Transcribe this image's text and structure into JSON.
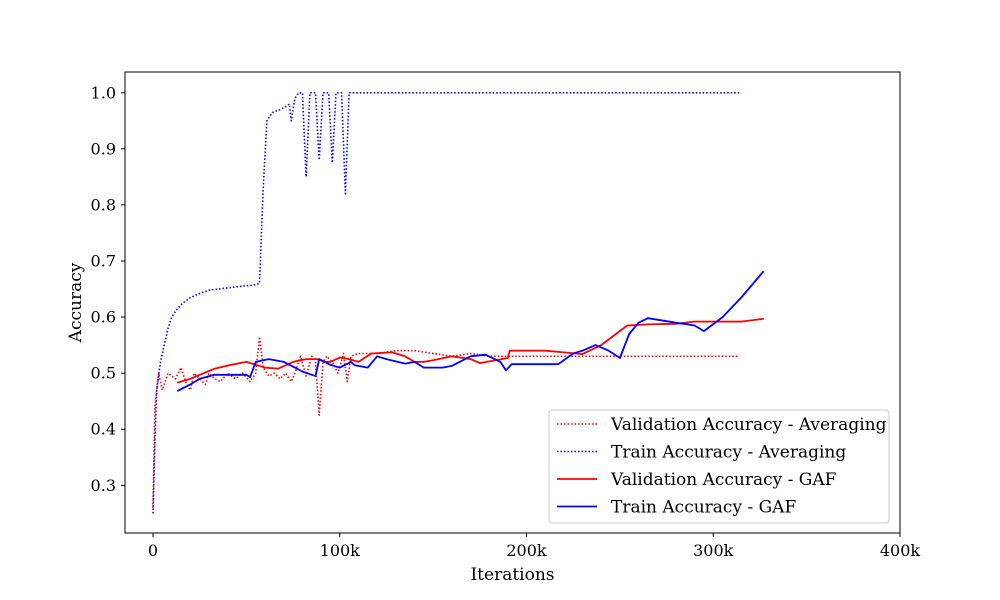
{
  "chart_data": {
    "type": "line",
    "title": "",
    "xlabel": "Iterations",
    "ylabel": "Accuracy",
    "xlim": [
      -15000,
      400000
    ],
    "ylim": [
      0.215,
      1.037
    ],
    "xticks": [
      {
        "value": 0,
        "label": "0"
      },
      {
        "value": 100000,
        "label": "100k"
      },
      {
        "value": 200000,
        "label": "200k"
      },
      {
        "value": 300000,
        "label": "300k"
      },
      {
        "value": 400000,
        "label": "400k"
      }
    ],
    "yticks": [
      {
        "value": 0.3,
        "label": "0.3"
      },
      {
        "value": 0.4,
        "label": "0.4"
      },
      {
        "value": 0.5,
        "label": "0.5"
      },
      {
        "value": 0.6,
        "label": "0.6"
      },
      {
        "value": 0.7,
        "label": "0.7"
      },
      {
        "value": 0.8,
        "label": "0.8"
      },
      {
        "value": 0.9,
        "label": "0.9"
      },
      {
        "value": 1.0,
        "label": "1.0"
      }
    ],
    "grid": false,
    "legend_position": "lower-right",
    "series": [
      {
        "name": "Validation Accuracy - Averaging",
        "color": "#ff0000",
        "style": "dotted",
        "points": [
          [
            0,
            0.26
          ],
          [
            1000,
            0.44
          ],
          [
            2000,
            0.47
          ],
          [
            3000,
            0.5
          ],
          [
            5000,
            0.47
          ],
          [
            8000,
            0.5
          ],
          [
            12000,
            0.49
          ],
          [
            15000,
            0.51
          ],
          [
            18000,
            0.48
          ],
          [
            20000,
            0.47
          ],
          [
            22000,
            0.5
          ],
          [
            25000,
            0.49
          ],
          [
            28000,
            0.48
          ],
          [
            30000,
            0.5
          ],
          [
            33000,
            0.49
          ],
          [
            36000,
            0.485
          ],
          [
            40000,
            0.5
          ],
          [
            44000,
            0.49
          ],
          [
            48000,
            0.5
          ],
          [
            52000,
            0.485
          ],
          [
            55000,
            0.5
          ],
          [
            57000,
            0.565
          ],
          [
            59000,
            0.51
          ],
          [
            62000,
            0.495
          ],
          [
            65000,
            0.5
          ],
          [
            68000,
            0.49
          ],
          [
            71000,
            0.5
          ],
          [
            74000,
            0.485
          ],
          [
            76000,
            0.5
          ],
          [
            79000,
            0.53
          ],
          [
            82000,
            0.495
          ],
          [
            85000,
            0.53
          ],
          [
            87000,
            0.52
          ],
          [
            89000,
            0.425
          ],
          [
            91000,
            0.52
          ],
          [
            93000,
            0.53
          ],
          [
            96000,
            0.52
          ],
          [
            99000,
            0.5
          ],
          [
            102000,
            0.535
          ],
          [
            104000,
            0.485
          ],
          [
            106000,
            0.53
          ],
          [
            110000,
            0.535
          ],
          [
            120000,
            0.535
          ],
          [
            130000,
            0.54
          ],
          [
            140000,
            0.54
          ],
          [
            150000,
            0.535
          ],
          [
            160000,
            0.53
          ],
          [
            170000,
            0.535
          ],
          [
            180000,
            0.53
          ],
          [
            190000,
            0.53
          ],
          [
            200000,
            0.53
          ],
          [
            210000,
            0.53
          ],
          [
            220000,
            0.53
          ],
          [
            230000,
            0.53
          ],
          [
            240000,
            0.53
          ],
          [
            250000,
            0.53
          ],
          [
            260000,
            0.53
          ],
          [
            270000,
            0.53
          ],
          [
            280000,
            0.53
          ],
          [
            290000,
            0.53
          ],
          [
            300000,
            0.53
          ],
          [
            314000,
            0.53
          ]
        ]
      },
      {
        "name": "Train Accuracy - Averaging",
        "color": "#0000ff",
        "style": "dotted",
        "points": [
          [
            0,
            0.25
          ],
          [
            1000,
            0.38
          ],
          [
            2000,
            0.47
          ],
          [
            4000,
            0.52
          ],
          [
            6000,
            0.55
          ],
          [
            8000,
            0.58
          ],
          [
            10000,
            0.6
          ],
          [
            13000,
            0.615
          ],
          [
            16000,
            0.625
          ],
          [
            20000,
            0.635
          ],
          [
            25000,
            0.642
          ],
          [
            30000,
            0.648
          ],
          [
            35000,
            0.65
          ],
          [
            40000,
            0.652
          ],
          [
            45000,
            0.654
          ],
          [
            50000,
            0.656
          ],
          [
            54000,
            0.657
          ],
          [
            57000,
            0.66
          ],
          [
            59000,
            0.83
          ],
          [
            61000,
            0.95
          ],
          [
            64000,
            0.965
          ],
          [
            68000,
            0.97
          ],
          [
            71000,
            0.975
          ],
          [
            73000,
            0.98
          ],
          [
            74000,
            0.95
          ],
          [
            76000,
            0.99
          ],
          [
            78000,
            1.0
          ],
          [
            80000,
            1.0
          ],
          [
            82000,
            0.85
          ],
          [
            84000,
            1.0
          ],
          [
            87000,
            1.0
          ],
          [
            89000,
            0.88
          ],
          [
            91000,
            1.0
          ],
          [
            94000,
            1.0
          ],
          [
            96000,
            0.875
          ],
          [
            98000,
            1.0
          ],
          [
            101000,
            1.0
          ],
          [
            103000,
            0.82
          ],
          [
            105000,
            1.0
          ],
          [
            110000,
            1.0
          ],
          [
            130000,
            1.0
          ],
          [
            150000,
            1.0
          ],
          [
            170000,
            1.0
          ],
          [
            200000,
            1.0
          ],
          [
            230000,
            1.0
          ],
          [
            260000,
            1.0
          ],
          [
            290000,
            1.0
          ],
          [
            314000,
            1.0
          ]
        ]
      },
      {
        "name": "Validation Accuracy - GAF",
        "color": "#ff0000",
        "style": "solid",
        "points": [
          [
            13000,
            0.483
          ],
          [
            20000,
            0.49
          ],
          [
            25000,
            0.497
          ],
          [
            33000,
            0.508
          ],
          [
            42000,
            0.515
          ],
          [
            50000,
            0.52
          ],
          [
            55000,
            0.515
          ],
          [
            60000,
            0.51
          ],
          [
            67000,
            0.508
          ],
          [
            75000,
            0.52
          ],
          [
            82000,
            0.525
          ],
          [
            88000,
            0.525
          ],
          [
            92000,
            0.52
          ],
          [
            95000,
            0.52
          ],
          [
            100000,
            0.528
          ],
          [
            105000,
            0.525
          ],
          [
            110000,
            0.52
          ],
          [
            117000,
            0.535
          ],
          [
            128000,
            0.537
          ],
          [
            135000,
            0.53
          ],
          [
            140000,
            0.52
          ],
          [
            145000,
            0.52
          ],
          [
            150000,
            0.523
          ],
          [
            160000,
            0.53
          ],
          [
            170000,
            0.525
          ],
          [
            175000,
            0.518
          ],
          [
            182000,
            0.522
          ],
          [
            190000,
            0.527
          ],
          [
            191000,
            0.54
          ],
          [
            200000,
            0.54
          ],
          [
            210000,
            0.54
          ],
          [
            220000,
            0.537
          ],
          [
            230000,
            0.534
          ],
          [
            240000,
            0.55
          ],
          [
            248000,
            0.57
          ],
          [
            254000,
            0.585
          ],
          [
            265000,
            0.587
          ],
          [
            280000,
            0.588
          ],
          [
            290000,
            0.592
          ],
          [
            300000,
            0.592
          ],
          [
            315000,
            0.592
          ],
          [
            327000,
            0.597
          ]
        ]
      },
      {
        "name": "Train Accuracy - GAF",
        "color": "#0000ff",
        "style": "solid",
        "points": [
          [
            13000,
            0.468
          ],
          [
            20000,
            0.48
          ],
          [
            25000,
            0.49
          ],
          [
            33000,
            0.497
          ],
          [
            42000,
            0.497
          ],
          [
            50000,
            0.497
          ],
          [
            52000,
            0.493
          ],
          [
            55000,
            0.52
          ],
          [
            62000,
            0.525
          ],
          [
            70000,
            0.52
          ],
          [
            76000,
            0.51
          ],
          [
            80000,
            0.503
          ],
          [
            85000,
            0.497
          ],
          [
            87000,
            0.495
          ],
          [
            89000,
            0.525
          ],
          [
            95000,
            0.515
          ],
          [
            100000,
            0.51
          ],
          [
            106000,
            0.52
          ],
          [
            108000,
            0.514
          ],
          [
            115000,
            0.51
          ],
          [
            120000,
            0.53
          ],
          [
            125000,
            0.525
          ],
          [
            135000,
            0.517
          ],
          [
            140000,
            0.52
          ],
          [
            145000,
            0.51
          ],
          [
            155000,
            0.51
          ],
          [
            160000,
            0.513
          ],
          [
            170000,
            0.53
          ],
          [
            178000,
            0.533
          ],
          [
            186000,
            0.52
          ],
          [
            189000,
            0.505
          ],
          [
            192000,
            0.516
          ],
          [
            200000,
            0.516
          ],
          [
            210000,
            0.516
          ],
          [
            217000,
            0.516
          ],
          [
            225000,
            0.535
          ],
          [
            230000,
            0.54
          ],
          [
            237000,
            0.55
          ],
          [
            244000,
            0.54
          ],
          [
            250000,
            0.527
          ],
          [
            255000,
            0.57
          ],
          [
            260000,
            0.59
          ],
          [
            265000,
            0.598
          ],
          [
            280000,
            0.59
          ],
          [
            290000,
            0.585
          ],
          [
            295000,
            0.575
          ],
          [
            305000,
            0.6
          ],
          [
            315000,
            0.635
          ],
          [
            327000,
            0.682
          ]
        ]
      }
    ]
  }
}
